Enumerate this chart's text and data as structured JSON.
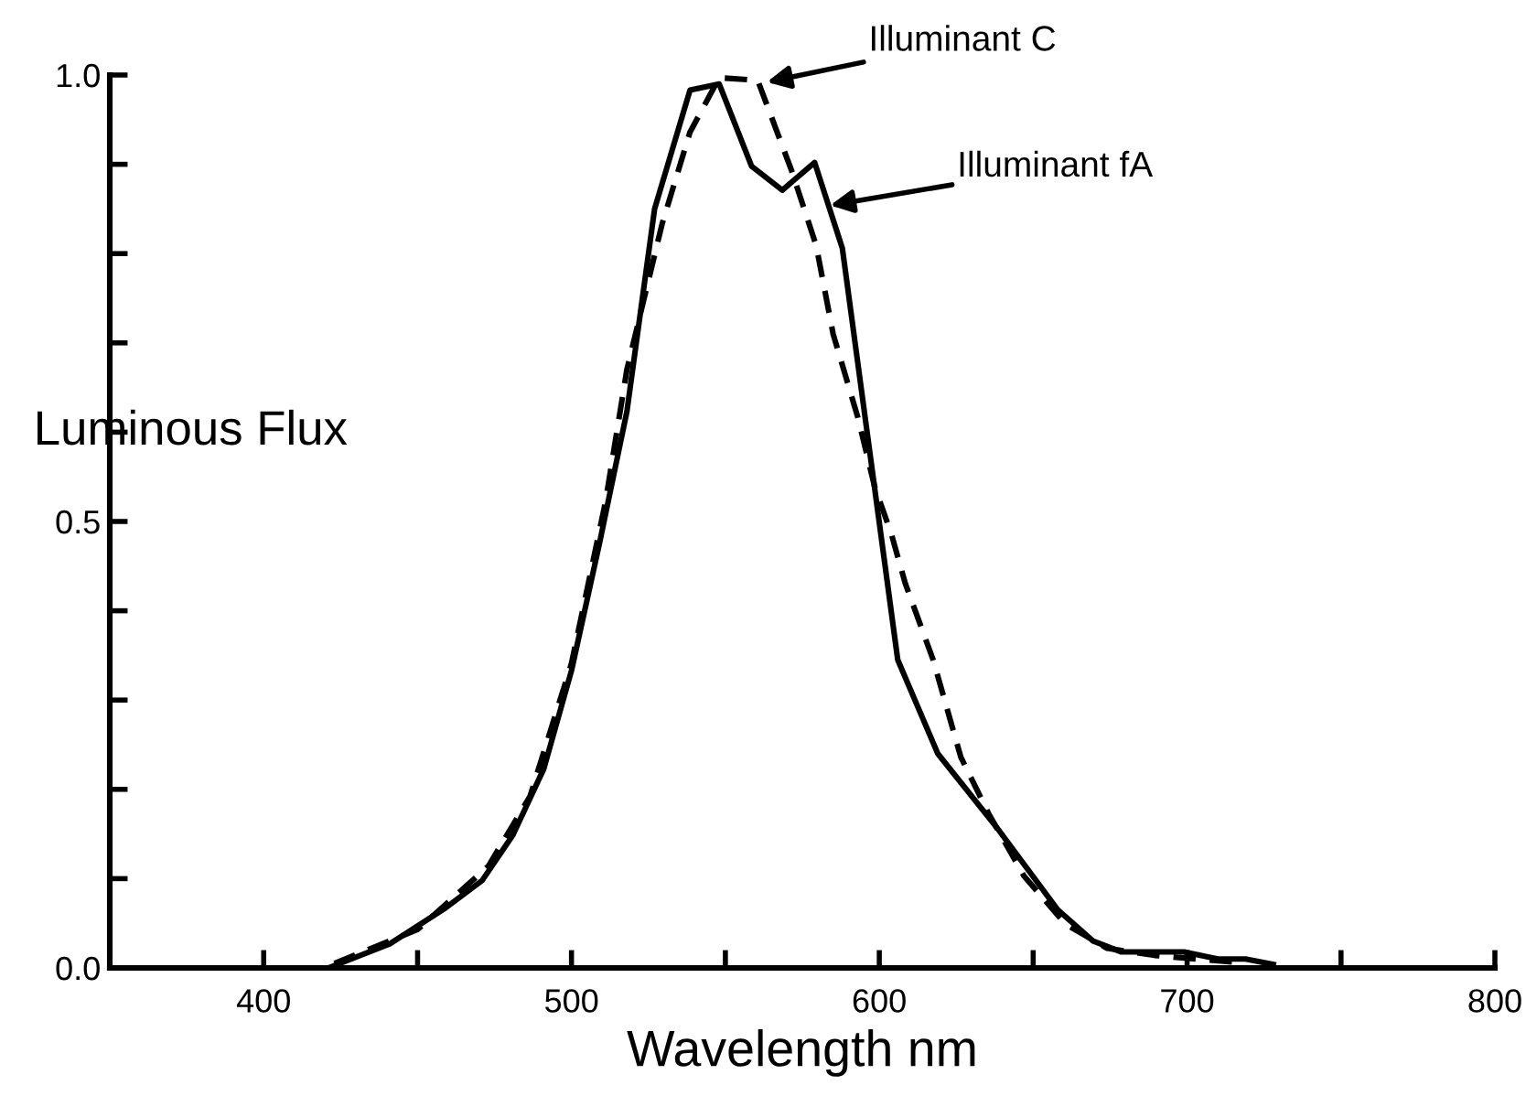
{
  "chart_data": {
    "type": "line",
    "xlabel": "Wavelength nm",
    "ylabel": "Luminous Flux",
    "xlim": [
      350,
      800
    ],
    "ylim": [
      0,
      1.0
    ],
    "xticks": [
      400,
      {
        "value": 450,
        "label": null
      },
      500,
      {
        "value": 550,
        "label": null
      },
      600,
      {
        "value": 650,
        "label": null
      },
      700,
      {
        "value": 750,
        "label": null
      },
      800
    ],
    "yticks": [
      {
        "value": 0,
        "label": "0.0"
      },
      {
        "value": 0.1,
        "label": null
      },
      {
        "value": 0.2,
        "label": null
      },
      {
        "value": 0.3,
        "label": null
      },
      {
        "value": 0.4,
        "label": null
      },
      0.5,
      {
        "value": 0.6,
        "label": null
      },
      {
        "value": 0.7,
        "label": null
      },
      {
        "value": 0.8,
        "label": null
      },
      {
        "value": 0.9,
        "label": null
      },
      {
        "value": 1.0,
        "label": "1.0"
      }
    ],
    "grid": false,
    "legend": false,
    "marker": "none",
    "series": [
      {
        "color": "#000000",
        "line_style": "solid",
        "x": [
          421,
          441,
          459,
          471,
          481,
          491,
          500,
          509,
          518,
          527,
          538.5,
          548,
          558.5,
          568.5,
          572.5,
          579,
          588,
          606,
          619,
          638,
          658,
          669.5,
          678.5,
          699,
          710,
          719,
          728
        ],
        "values": [
          0.0,
          0.027,
          0.067,
          0.098,
          0.149,
          0.223,
          0.333,
          0.474,
          0.623,
          0.85,
          0.983,
          0.99,
          0.898,
          0.871,
          0.883,
          0.902,
          0.806,
          0.345,
          0.24,
          0.158,
          0.065,
          0.03,
          0.018,
          0.018,
          0.01,
          0.01,
          0.004
        ]
      },
      {
        "color": "#000000",
        "line_style": "dashed",
        "x": [
          423,
          450,
          473,
          486.5,
          500,
          511,
          518,
          529.5,
          538.5,
          548,
          560.5,
          571.5,
          579.5,
          585,
          593,
          598.5,
          604,
          608.5,
          617.5,
          626.5,
          635.5,
          647,
          660.5,
          674,
          689.5,
          703,
          717
        ],
        "values": [
          0.005,
          0.043,
          0.114,
          0.192,
          0.341,
          0.521,
          0.67,
          0.834,
          0.936,
          0.997,
          0.994,
          0.893,
          0.809,
          0.71,
          0.617,
          0.539,
          0.485,
          0.43,
          0.345,
          0.236,
          0.173,
          0.103,
          0.049,
          0.022,
          0.014,
          0.01,
          0.006
        ]
      }
    ],
    "annotations": [
      {
        "text": "Illuminant C",
        "x": 563.5,
        "y": 0.992
      },
      {
        "text": "Illuminant fA",
        "x": 584,
        "y": 0.854
      }
    ]
  }
}
